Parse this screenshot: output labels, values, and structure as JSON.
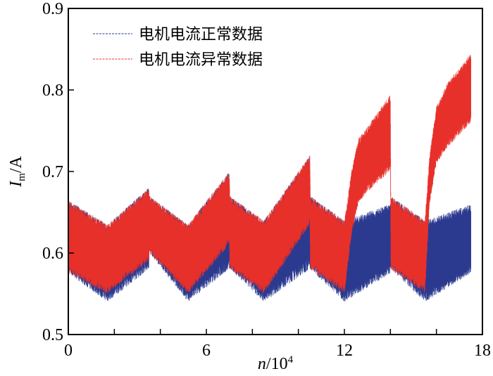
{
  "chart_data": {
    "type": "line",
    "title": "",
    "xlabel": "n/10^4",
    "xlabel_main": "n",
    "xlabel_unit": "/10",
    "xlabel_exp": "4",
    "ylabel_main": "I",
    "ylabel_sub": "m",
    "ylabel_unit": "/A",
    "xlim": [
      0,
      18
    ],
    "ylim": [
      0.5,
      0.9
    ],
    "xticks": [
      0,
      6,
      12,
      18
    ],
    "xtick_labels": [
      "0",
      "6",
      "12",
      "18"
    ],
    "xminor_step": 2,
    "yticks": [
      0.5,
      0.6,
      0.7,
      0.8,
      0.9
    ],
    "ytick_labels": [
      "0.5",
      "0.6",
      "0.7",
      "0.8",
      "0.9"
    ],
    "grid": false,
    "legend_placement": "top-left",
    "note_on_values": "dense oscillating signals; values are upper/lower envelopes",
    "series": [
      {
        "name": "电机电流正常数据",
        "color": "#2b3a8f",
        "x": [
          0,
          1.7,
          3.5,
          3.52,
          5.2,
          7.0,
          7.02,
          8.5,
          10.5,
          10.52,
          12.0,
          14.0,
          14.02,
          15.5,
          17.5
        ],
        "upper": [
          0.665,
          0.635,
          0.68,
          0.67,
          0.635,
          0.7,
          0.67,
          0.64,
          0.72,
          0.67,
          0.64,
          0.66,
          0.67,
          0.64,
          0.66
        ],
        "lower": [
          0.575,
          0.54,
          0.58,
          0.6,
          0.54,
          0.58,
          0.58,
          0.54,
          0.58,
          0.58,
          0.54,
          0.575,
          0.58,
          0.54,
          0.575
        ]
      },
      {
        "name": "电机电流异常数据",
        "color": "#e8302a",
        "x": [
          0,
          1.7,
          3.5,
          3.52,
          5.2,
          7.0,
          7.02,
          8.5,
          10.5,
          10.52,
          12.0,
          12.3,
          12.6,
          13.0,
          14.0,
          14.02,
          15.5,
          15.7,
          16.0,
          16.5,
          17.5
        ],
        "upper": [
          0.665,
          0.635,
          0.68,
          0.67,
          0.635,
          0.7,
          0.67,
          0.64,
          0.72,
          0.67,
          0.64,
          0.7,
          0.74,
          0.755,
          0.795,
          0.67,
          0.64,
          0.72,
          0.78,
          0.81,
          0.845
        ],
        "lower": [
          0.575,
          0.55,
          0.59,
          0.6,
          0.55,
          0.61,
          0.58,
          0.55,
          0.635,
          0.58,
          0.55,
          0.62,
          0.66,
          0.675,
          0.7,
          0.58,
          0.55,
          0.66,
          0.71,
          0.73,
          0.76
        ]
      }
    ]
  }
}
